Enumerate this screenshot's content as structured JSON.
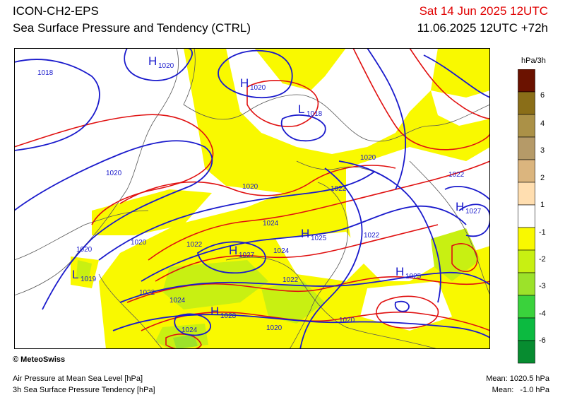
{
  "header": {
    "model": "ICON-CH2-EPS",
    "product": "Sea Surface Pressure and Tendency (CTRL)",
    "valid_date": "Sat 14 Jun 2025 12UTC",
    "run": "11.06.2025 12UTC +72h"
  },
  "legend": {
    "unit": "hPa/3h",
    "labels": [
      "6",
      "4",
      "3",
      "2",
      "1",
      "-1",
      "-2",
      "-3",
      "-4",
      "-6"
    ],
    "colors": [
      "#6b1200",
      "#8a6e18",
      "#ab9147",
      "#b59a68",
      "#dbb57e",
      "#ffdeb0",
      "#ffffff",
      "#f9f900",
      "#c8f012",
      "#9ce22a",
      "#3ad23c",
      "#0cba40",
      "#078c30"
    ]
  },
  "map": {
    "background_color": "#ffffff",
    "tendency_fill_color": "#f9f900",
    "light_green": "#c8f012",
    "mid_green": "#9ce22a",
    "isobar_color": "#1a1acc",
    "tendency_line_color": "#e01010",
    "pressure_labels": [
      "1018",
      "1020",
      "1020",
      "1020",
      "1020",
      "1020",
      "1022",
      "1022",
      "1022",
      "1022",
      "1022",
      "1022",
      "1024",
      "1024",
      "1024",
      "1024",
      "1020",
      "1020"
    ],
    "centers": [
      {
        "type": "H",
        "value": "1020"
      },
      {
        "type": "H",
        "value": "1020"
      },
      {
        "type": "L",
        "value": "1018"
      },
      {
        "type": "H",
        "value": "1027"
      },
      {
        "type": "H",
        "value": "1025"
      },
      {
        "type": "H",
        "value": "1027"
      },
      {
        "type": "L",
        "value": "1019"
      },
      {
        "type": "H",
        "value": "1025"
      },
      {
        "type": "H",
        "value": "1028"
      }
    ]
  },
  "footer": {
    "copyright": "© MeteoSwiss",
    "line1": "Air Pressure at Mean Sea Level [hPa]",
    "line2": "3h Sea Surface Pressure Tendency [hPa]",
    "mean_pressure": "Mean: 1020.5 hPa",
    "mean_tendency": "Mean:   -1.0 hPa"
  }
}
